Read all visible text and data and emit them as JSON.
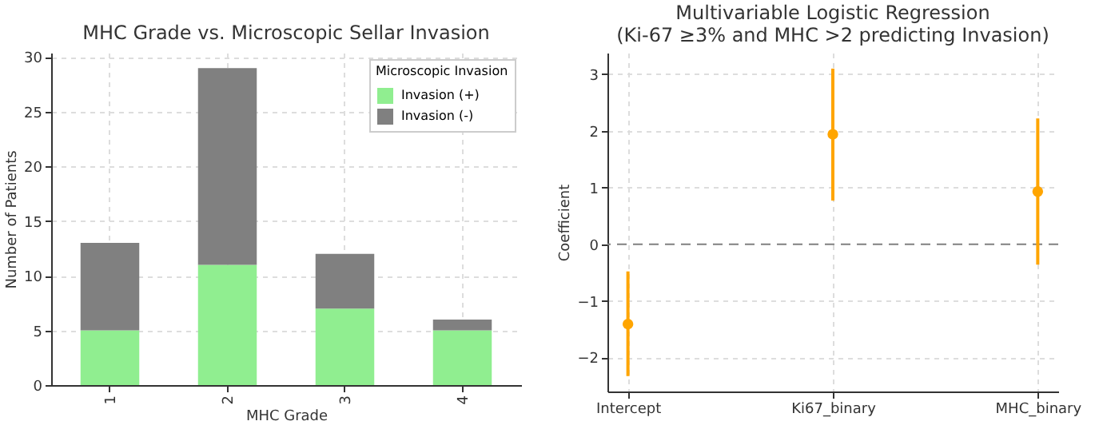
{
  "chart_data": [
    {
      "type": "bar",
      "title": "MHC Grade vs. Microscopic Sellar Invasion",
      "xlabel": "MHC Grade",
      "ylabel": "Number of Patients",
      "legend_title": "Microscopic Invasion",
      "categories": [
        "1",
        "2",
        "3",
        "4"
      ],
      "stacked": true,
      "series": [
        {
          "name": "Invasion (+)",
          "color": "#90ee90",
          "values": [
            5,
            11,
            7,
            5
          ]
        },
        {
          "name": "Invasion (-)",
          "color": "#808080",
          "values": [
            8,
            18,
            5,
            1
          ]
        }
      ],
      "ylim": [
        0,
        30.4
      ],
      "yticks": [
        0,
        5,
        10,
        15,
        20,
        25,
        30
      ],
      "grid": true,
      "legend": "top right"
    },
    {
      "type": "scatter",
      "title": "Multivariable Logistic Regression\n(Ki-67 ≥3% and MHC >2 predicting Invasion)",
      "ylabel": "Coefficient",
      "categories": [
        "Intercept",
        "Ki67_binary",
        "MHC_binary"
      ],
      "series": [
        {
          "color": "#ffa500",
          "values": [
            -1.41,
            1.94,
            0.93
          ],
          "errors": [
            [
              -2.33,
              -0.48
            ],
            [
              0.77,
              3.1
            ],
            [
              -0.36,
              2.22
            ]
          ]
        }
      ],
      "ylim": [
        -2.6,
        3.38
      ],
      "yticks": [
        {
          "value": -2,
          "label": "−2"
        },
        {
          "value": -1,
          "label": "−1"
        },
        0,
        1,
        2,
        3
      ],
      "grid": true,
      "marker": "circle",
      "ref_lines": [
        {
          "axis": "y",
          "value": 0,
          "color": "#808080",
          "line_style": "dashed"
        }
      ]
    }
  ]
}
